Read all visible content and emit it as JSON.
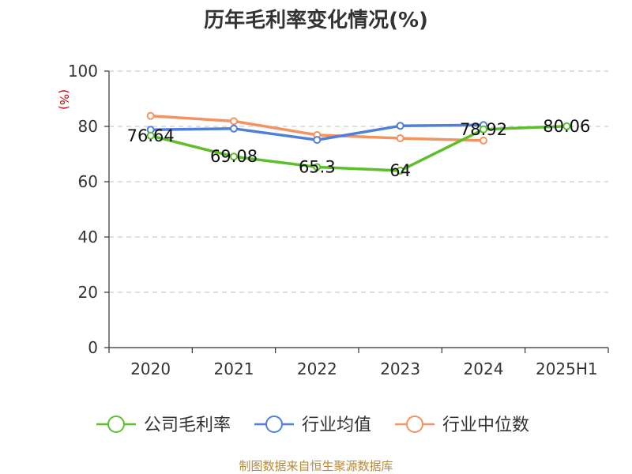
{
  "source": "制图数据来自恒生聚源数据库",
  "chart_data": {
    "type": "line",
    "title": "历年毛利率变化情况(%)",
    "unit_label": "(%)",
    "categories": [
      "2020",
      "2021",
      "2022",
      "2023",
      "2024",
      "2025H1"
    ],
    "ylim": [
      0,
      100
    ],
    "yticks": [
      0,
      20,
      40,
      60,
      80,
      100
    ],
    "grid": true,
    "legend_position": "bottom",
    "series": [
      {
        "name": "公司毛利率",
        "color": "#5cbf2a",
        "values": [
          76.64,
          69.08,
          65.3,
          64,
          78.92,
          80.06
        ],
        "labels": [
          "76.64",
          "69.08",
          "65.3",
          "64",
          "78.92",
          "80.06"
        ]
      },
      {
        "name": "行业均值",
        "color": "#4f7fd8",
        "values": [
          78.8,
          79.2,
          75.1,
          80.2,
          80.5,
          null
        ]
      },
      {
        "name": "行业中位数",
        "color": "#f29361",
        "values": [
          83.8,
          81.9,
          76.9,
          75.7,
          74.9,
          null
        ]
      }
    ]
  }
}
